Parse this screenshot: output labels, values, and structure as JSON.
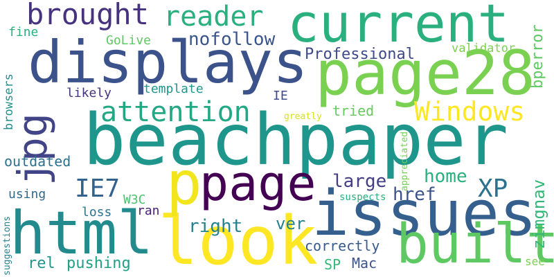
{
  "words": [
    {
      "text": "beachpaper",
      "color": "#1f968b"
    },
    {
      "text": "current",
      "color": "#2ab07f"
    },
    {
      "text": "displays",
      "color": "#3b528b"
    },
    {
      "text": "page28",
      "color": "#7ad151"
    },
    {
      "text": "issues",
      "color": "#355f8d"
    },
    {
      "text": "look",
      "color": "#fde725"
    },
    {
      "text": "html",
      "color": "#238a8d"
    },
    {
      "text": "built",
      "color": "#5ec962"
    },
    {
      "text": "page",
      "color": "#440154"
    },
    {
      "text": "p",
      "color": "#f2e51d"
    },
    {
      "text": "jpg",
      "color": "#414487"
    },
    {
      "text": "brought",
      "color": "#46327e"
    },
    {
      "text": "reader",
      "color": "#2ab07f"
    },
    {
      "text": "attention",
      "color": "#22a884"
    },
    {
      "text": "Windows",
      "color": "#fde725"
    },
    {
      "text": "nofollow",
      "color": "#39558c"
    },
    {
      "text": "Professional",
      "color": "#3e4a89"
    },
    {
      "text": "IE7",
      "color": "#33638d"
    },
    {
      "text": "XP",
      "color": "#2c728e"
    },
    {
      "text": "large",
      "color": "#433e85"
    },
    {
      "text": "home",
      "color": "#2ab07f"
    },
    {
      "text": "href",
      "color": "#3b528b"
    },
    {
      "text": "zimgnav",
      "color": "#35b779"
    },
    {
      "text": "bperror",
      "color": "#5ec962"
    },
    {
      "text": "validator",
      "color": "#7ad151"
    },
    {
      "text": "GoLive",
      "color": "#5ec962"
    },
    {
      "text": "fine",
      "color": "#2ab07f"
    },
    {
      "text": "likely",
      "color": "#46327e"
    },
    {
      "text": "template",
      "color": "#1f968b"
    },
    {
      "text": "IE",
      "color": "#3e4a89"
    },
    {
      "text": "greatly",
      "color": "#d8e219"
    },
    {
      "text": "tried",
      "color": "#65cb5e"
    },
    {
      "text": "browsers",
      "color": "#21918c"
    },
    {
      "text": "outdated",
      "color": "#2c728e"
    },
    {
      "text": "appreciated",
      "color": "#75d054"
    },
    {
      "text": "using",
      "color": "#31688e"
    },
    {
      "text": "W3C",
      "color": "#4ac16d"
    },
    {
      "text": "suspects",
      "color": "#2ab07f"
    },
    {
      "text": "loss",
      "color": "#2c728e"
    },
    {
      "text": "ran",
      "color": "#482173"
    },
    {
      "text": "right",
      "color": "#26828e"
    },
    {
      "text": "ver",
      "color": "#26828e"
    },
    {
      "text": "correctly",
      "color": "#38598c"
    },
    {
      "text": "rel",
      "color": "#1f968b"
    },
    {
      "text": "pushing",
      "color": "#1fa187"
    },
    {
      "text": "SP",
      "color": "#35b779"
    },
    {
      "text": "Mac",
      "color": "#3b528b"
    },
    {
      "text": "see",
      "color": "#7ad151"
    },
    {
      "text": "suggestions",
      "color": "#26828e"
    }
  ]
}
